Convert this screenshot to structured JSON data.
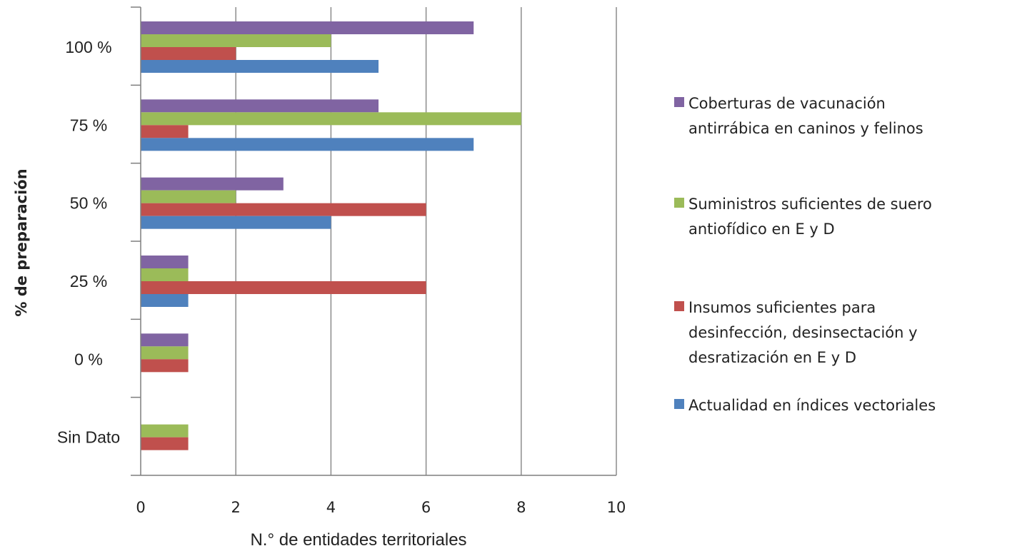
{
  "chart_data": {
    "type": "bar",
    "orientation": "horizontal",
    "categories": [
      "100 %",
      "75 %",
      "50 %",
      "25 %",
      "0 %",
      "Sin Dato"
    ],
    "series": [
      {
        "name": "Coberturas de vacunación antirrábica en caninos y felinos",
        "color": "#8064a2",
        "values": [
          7,
          5,
          3,
          1,
          1,
          null
        ]
      },
      {
        "name": "Suministros suficientes de suero antiofídico en E y D",
        "color": "#9bbb59",
        "values": [
          4,
          8,
          2,
          1,
          1,
          1
        ]
      },
      {
        "name": "Insumos suficientes para desinfección, desinsectación y desratización en E y D",
        "color": "#c0504d",
        "values": [
          2,
          1,
          6,
          6,
          1,
          1
        ]
      },
      {
        "name": "Actualidad en índices vectoriales",
        "color": "#4f81bd",
        "values": [
          5,
          7,
          4,
          1,
          null,
          null
        ]
      }
    ],
    "xlabel": "N.° de entidades territoriales",
    "ylabel": "% de preparación",
    "xlim": [
      0,
      10
    ],
    "xticks": [
      "0",
      "2",
      "4",
      "6",
      "8",
      "10"
    ],
    "grid": "vertical",
    "legend_position": "right"
  },
  "legend": {
    "items": [
      {
        "label": "Coberturas de vacunación\n antirrábica en caninos y felinos",
        "color": "#8064a2"
      },
      {
        "label": "Suministros suficientes de  suero\nantiofídico    en E y D",
        "color": "#9bbb59"
      },
      {
        "label": "Insumos suficientes para\ndesinfección, desinsectación y\ndesratización en E y D",
        "color": "#c0504d"
      },
      {
        "label": "Actualidad en índices vectoriales",
        "color": "#4f81bd"
      }
    ]
  }
}
